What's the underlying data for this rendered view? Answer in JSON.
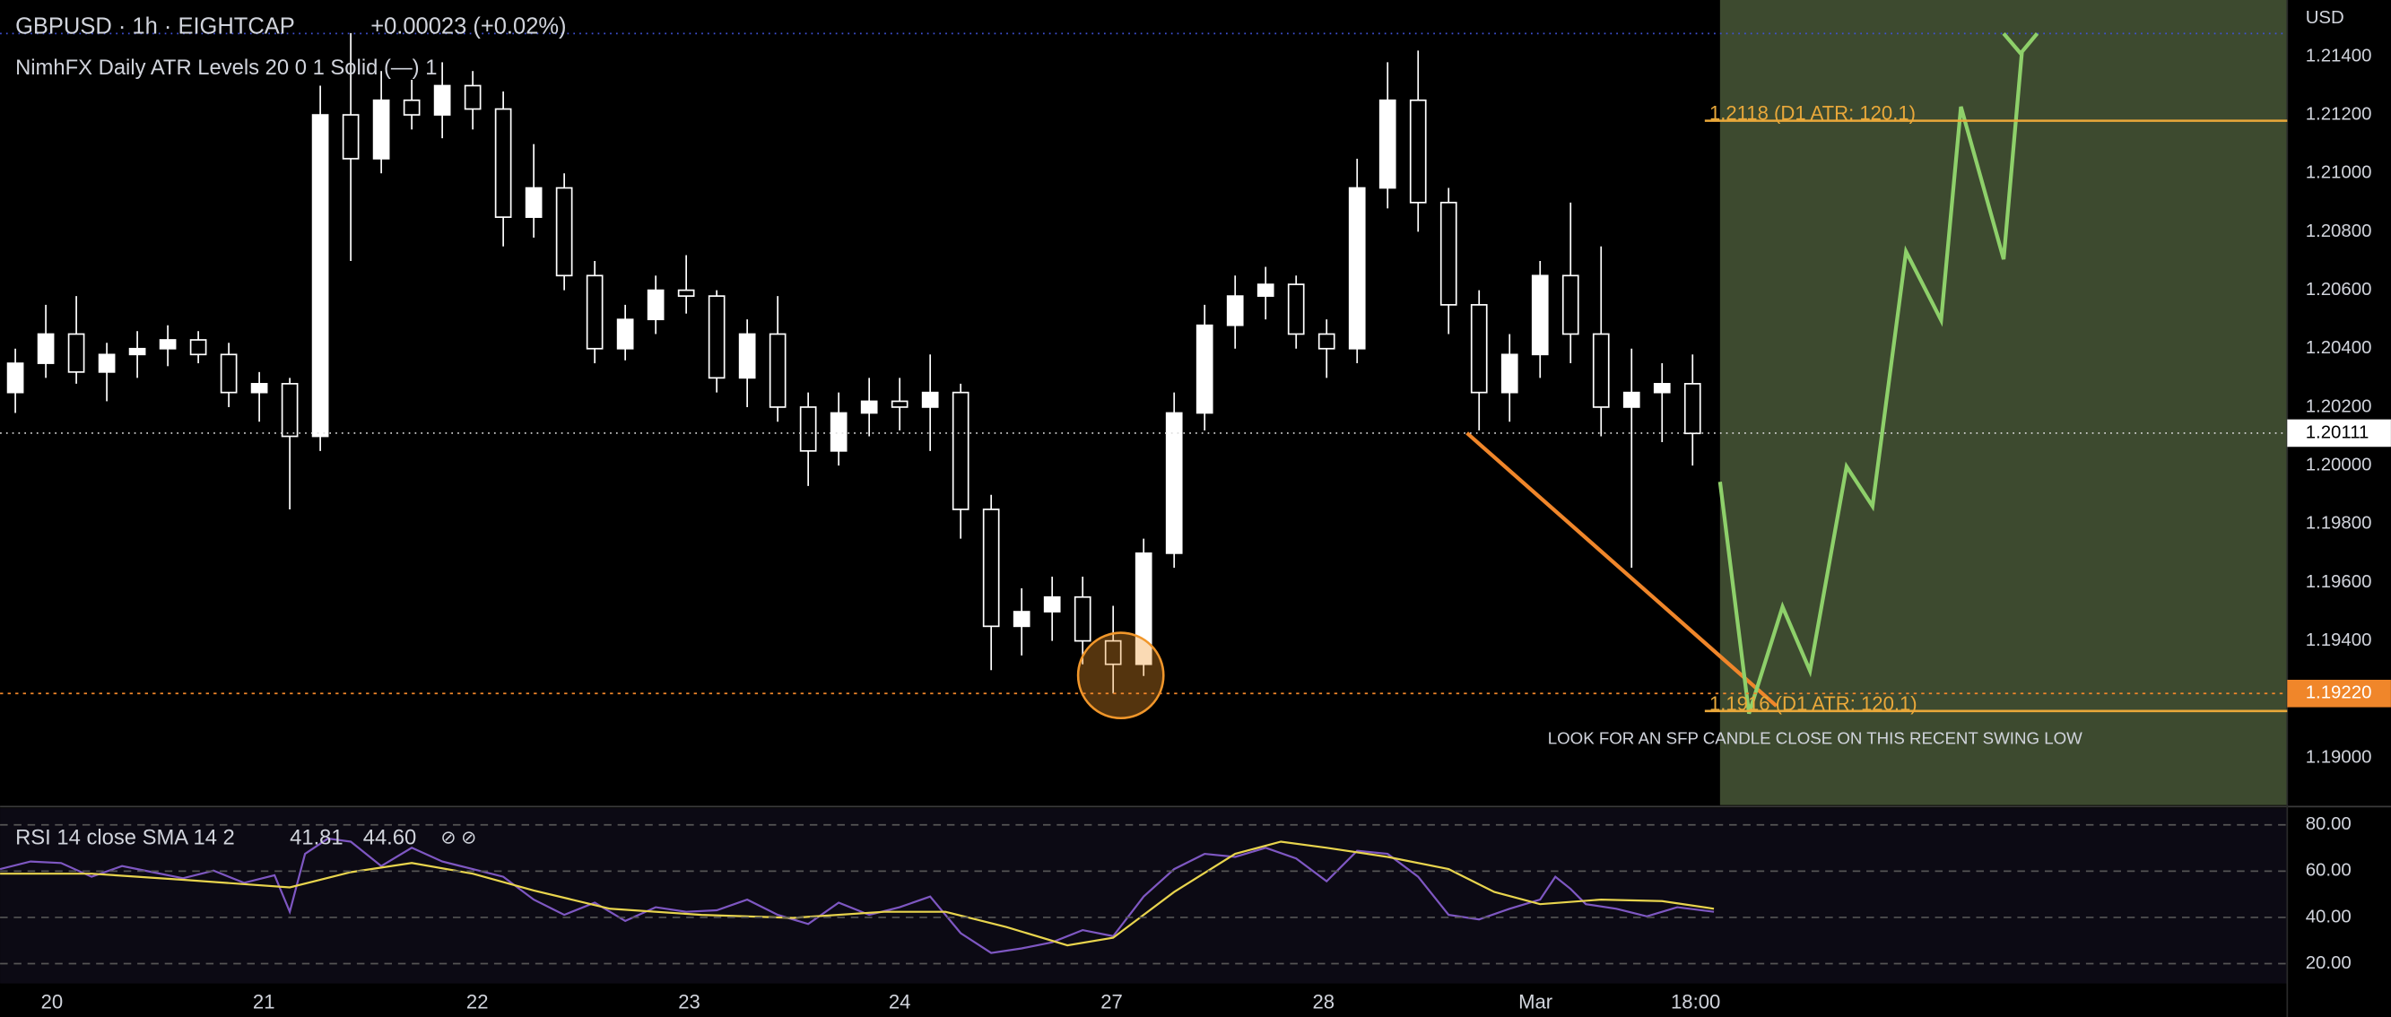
{
  "header": {
    "symbol": "GBPUSD · 1h · EIGHTCAP",
    "change": "+0.00023 (+0.02%)",
    "indicator": "NimhFX Daily ATR Levels 20 0 1 Solid (—) 1"
  },
  "price_axis": {
    "unit": "USD",
    "ticks": [
      {
        "value": 1.214,
        "label": "1.21400"
      },
      {
        "value": 1.212,
        "label": "1.21200"
      },
      {
        "value": 1.21,
        "label": "1.21000"
      },
      {
        "value": 1.208,
        "label": "1.20800"
      },
      {
        "value": 1.206,
        "label": "1.20600"
      },
      {
        "value": 1.204,
        "label": "1.20400"
      },
      {
        "value": 1.202,
        "label": "1.20200"
      },
      {
        "value": 1.2,
        "label": "1.20000"
      },
      {
        "value": 1.198,
        "label": "1.19800"
      },
      {
        "value": 1.196,
        "label": "1.19600"
      },
      {
        "value": 1.194,
        "label": "1.19400"
      },
      {
        "value": 1.192,
        "label": "1.19200"
      },
      {
        "value": 1.19,
        "label": "1.19000"
      }
    ],
    "last_price": {
      "value": 1.20111,
      "label": "1.20111"
    },
    "marked_price": {
      "value": 1.1922,
      "label": "1.19220"
    }
  },
  "levels": {
    "upper": {
      "value": 1.2118,
      "label": "1.2118 (D1 ATR: 120.1)"
    },
    "lower": {
      "value": 1.1916,
      "label": "1.1916 (D1 ATR: 120.1)"
    }
  },
  "annotation": "LOOK FOR AN SFP CANDLE CLOSE ON THIS RECENT SWING LOW",
  "candles": [
    [
      1.2025,
      1.204,
      1.2018,
      1.2035
    ],
    [
      1.2035,
      1.2055,
      1.203,
      1.2045
    ],
    [
      1.2045,
      1.2058,
      1.2028,
      1.2032
    ],
    [
      1.2032,
      1.2042,
      1.2022,
      1.2038
    ],
    [
      1.2038,
      1.2046,
      1.203,
      1.204
    ],
    [
      1.204,
      1.2048,
      1.2034,
      1.2043
    ],
    [
      1.2043,
      1.2046,
      1.2035,
      1.2038
    ],
    [
      1.2038,
      1.2042,
      1.202,
      1.2025
    ],
    [
      1.2025,
      1.2032,
      1.2015,
      1.2028
    ],
    [
      1.2028,
      1.203,
      1.1985,
      1.201
    ],
    [
      1.201,
      1.213,
      1.2005,
      1.212
    ],
    [
      1.212,
      1.2148,
      1.207,
      1.2105
    ],
    [
      1.2105,
      1.2135,
      1.21,
      1.2125
    ],
    [
      1.2125,
      1.2132,
      1.2115,
      1.212
    ],
    [
      1.212,
      1.2138,
      1.2112,
      1.213
    ],
    [
      1.213,
      1.2135,
      1.2115,
      1.2122
    ],
    [
      1.2122,
      1.2128,
      1.2075,
      1.2085
    ],
    [
      1.2085,
      1.211,
      1.2078,
      1.2095
    ],
    [
      1.2095,
      1.21,
      1.206,
      1.2065
    ],
    [
      1.2065,
      1.207,
      1.2035,
      1.204
    ],
    [
      1.204,
      1.2055,
      1.2036,
      1.205
    ],
    [
      1.205,
      1.2065,
      1.2045,
      1.206
    ],
    [
      1.206,
      1.2072,
      1.2052,
      1.2058
    ],
    [
      1.2058,
      1.206,
      1.2025,
      1.203
    ],
    [
      1.203,
      1.205,
      1.202,
      1.2045
    ],
    [
      1.2045,
      1.2058,
      1.2015,
      1.202
    ],
    [
      1.202,
      1.2025,
      1.1993,
      1.2005
    ],
    [
      1.2005,
      1.2025,
      1.2,
      1.2018
    ],
    [
      1.2018,
      1.203,
      1.201,
      1.2022
    ],
    [
      1.2022,
      1.203,
      1.2012,
      1.202
    ],
    [
      1.202,
      1.2038,
      1.2005,
      1.2025
    ],
    [
      1.2025,
      1.2028,
      1.1975,
      1.1985
    ],
    [
      1.1985,
      1.199,
      1.193,
      1.1945
    ],
    [
      1.1945,
      1.1958,
      1.1935,
      1.195
    ],
    [
      1.195,
      1.1962,
      1.194,
      1.1955
    ],
    [
      1.1955,
      1.1962,
      1.1932,
      1.194
    ],
    [
      1.194,
      1.1952,
      1.1922,
      1.1932
    ],
    [
      1.1932,
      1.1975,
      1.1928,
      1.197
    ],
    [
      1.197,
      1.2025,
      1.1965,
      1.2018
    ],
    [
      1.2018,
      1.2055,
      1.2012,
      1.2048
    ],
    [
      1.2048,
      1.2065,
      1.204,
      1.2058
    ],
    [
      1.2058,
      1.2068,
      1.205,
      1.2062
    ],
    [
      1.2062,
      1.2065,
      1.204,
      1.2045
    ],
    [
      1.2045,
      1.205,
      1.203,
      1.204
    ],
    [
      1.204,
      1.2105,
      1.2035,
      1.2095
    ],
    [
      1.2095,
      1.2138,
      1.2088,
      1.2125
    ],
    [
      1.2125,
      1.2142,
      1.208,
      1.209
    ],
    [
      1.209,
      1.2095,
      1.2045,
      1.2055
    ],
    [
      1.2055,
      1.206,
      1.2012,
      1.2025
    ],
    [
      1.2025,
      1.2045,
      1.2015,
      1.2038
    ],
    [
      1.2038,
      1.207,
      1.203,
      1.2065
    ],
    [
      1.2065,
      1.209,
      1.2035,
      1.2045
    ],
    [
      1.2045,
      1.2075,
      1.201,
      1.202
    ],
    [
      1.202,
      1.204,
      1.1965,
      1.2025
    ],
    [
      1.2025,
      1.2035,
      1.2008,
      1.2028
    ],
    [
      1.2028,
      1.2038,
      1.2,
      1.2011
    ]
  ],
  "rsi": {
    "label": "RSI 14 close SMA 14 2",
    "rsi_value": "41.81",
    "sma_value": "44.60",
    "icons": "⊘ ⊘",
    "ticks": [
      {
        "value": 80,
        "label": "80.00"
      },
      {
        "value": 60,
        "label": "60.00"
      },
      {
        "value": 40,
        "label": "40.00"
      },
      {
        "value": 20,
        "label": "20.00"
      }
    ]
  },
  "time_axis": [
    "20",
    "21",
    "22",
    "23",
    "24",
    "27",
    "28",
    "Mar",
    "18:00"
  ]
}
